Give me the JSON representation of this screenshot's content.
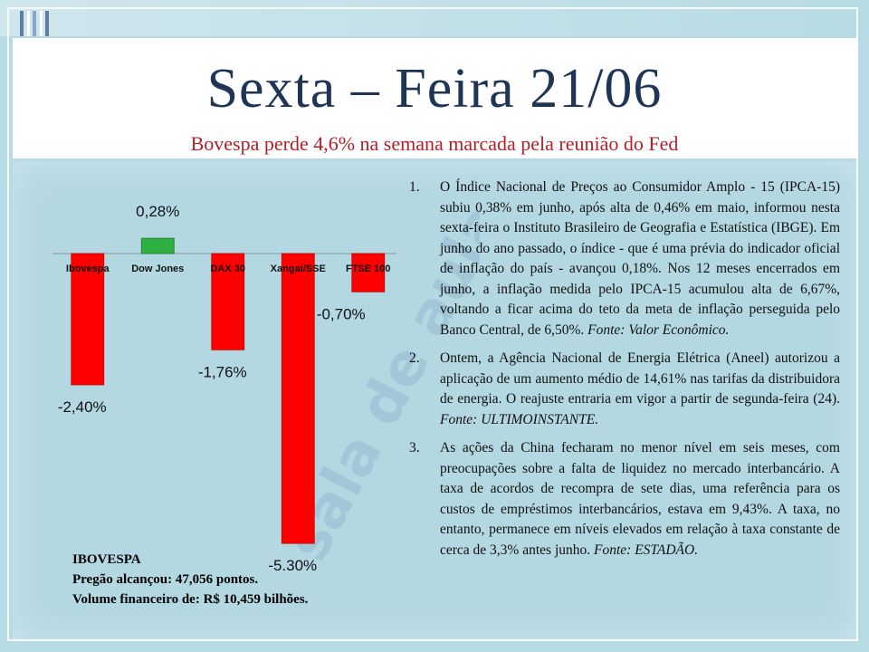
{
  "header": {
    "title": "Sexta – Feira 21/06",
    "subtitle": "Bovespa perde 4,6% na semana marcada pela reunião do Fed"
  },
  "chart_data": {
    "type": "bar",
    "categories": [
      "Ibovespa",
      "Dow Jones",
      "DAX 30",
      "Xangai/SSE",
      "FTSE 100"
    ],
    "values": [
      -2.4,
      0.28,
      -1.76,
      -5.3,
      -0.7
    ],
    "data_labels": [
      "-2,40%",
      "0,28%",
      "-1,76%",
      "-5,30%",
      "-0,70%"
    ],
    "colors": {
      "positive": "#2fb042",
      "negative": "#ff0000"
    },
    "ylim": [
      -5.3,
      0.28
    ],
    "grid": false,
    "legend": "none"
  },
  "ibovespa_box": {
    "title": "IBOVESPA",
    "line1": "Pregão alcançou: 47,056 pontos.",
    "line2": "Volume financeiro de: R$  10,459 bilhões."
  },
  "news": [
    {
      "num": "1.",
      "text": "O Índice Nacional de Preços ao Consumidor Amplo - 15 (IPCA-15) subiu 0,38% em junho, após alta de 0,46% em maio, informou nesta sexta-feira o Instituto Brasileiro de Geografia e Estatística (IBGE). Em junho do ano passado, o índice - que é uma prévia do indicador oficial de inflação do país - avançou 0,18%. Nos 12 meses encerrados em junho, a inflação medida pelo IPCA-15 acumulou alta de 6,67%, voltando a ficar acima do teto da meta de inflação perseguida pelo Banco Central, de 6,50%. ",
      "source": "Fonte: Valor Econômico."
    },
    {
      "num": "2.",
      "text": "Ontem, a Agência Nacional de Energia Elétrica (Aneel) autorizou a aplicação de um aumento médio de 14,61% nas tarifas da distribuidora de energia. O reajuste entraria em vigor a partir de segunda-feira (24). ",
      "source": "Fonte: ULTIMOINSTANTE."
    },
    {
      "num": "3.",
      "text": "As ações da China fecharam no menor nível em seis meses, com preocupações sobre a falta de liquidez no mercado interbancário. A taxa de acordos de recompra de sete dias, uma referência para os custos de empréstimos interbancários, estava em 9,43%. A taxa, no entanto, permanece em níveis elevados em relação à taxa constante de cerca de 3,3% antes junho. ",
      "source": "Fonte: ESTADÃO."
    }
  ],
  "watermark": "sala de aula UFPB"
}
